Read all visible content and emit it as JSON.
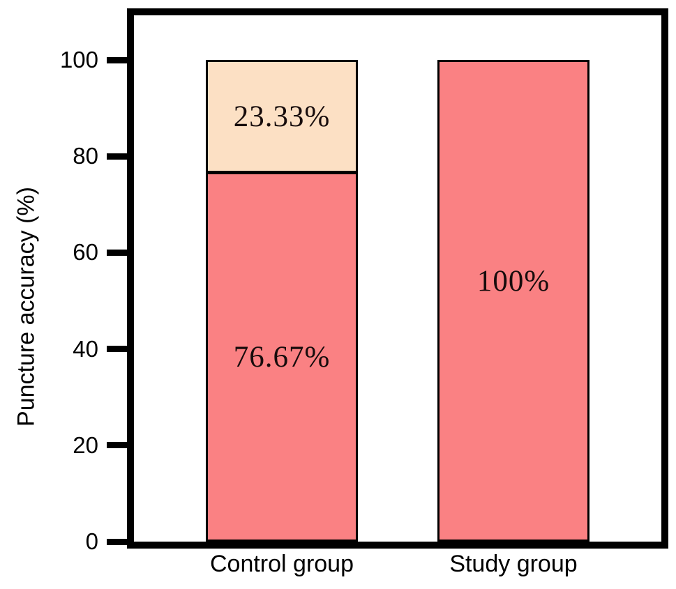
{
  "figure": {
    "background": "#ffffff",
    "frame_color": "#000000"
  },
  "chart_data": {
    "type": "bar",
    "stacked": true,
    "title": "",
    "xlabel": "",
    "ylabel": "Puncture accuracy (%)",
    "categories": [
      "Control group",
      "Study group"
    ],
    "yticks": [
      0,
      20,
      40,
      60,
      80,
      100
    ],
    "ylim": [
      0,
      109
    ],
    "grid": false,
    "legend_position": "none",
    "axis_color": "#000000",
    "bar_edge_color": "#000000",
    "segment_label_color": "#170c0c",
    "bars": [
      {
        "category": "Control group",
        "segments": [
          {
            "value": 76.67,
            "label": "76.67%",
            "color": "#fa8183"
          },
          {
            "value": 23.33,
            "label": "23.33%",
            "color": "#fce0c4"
          }
        ]
      },
      {
        "category": "Study group",
        "segments": [
          {
            "value": 100,
            "label": "100%",
            "color": "#fa8183"
          }
        ]
      }
    ]
  }
}
